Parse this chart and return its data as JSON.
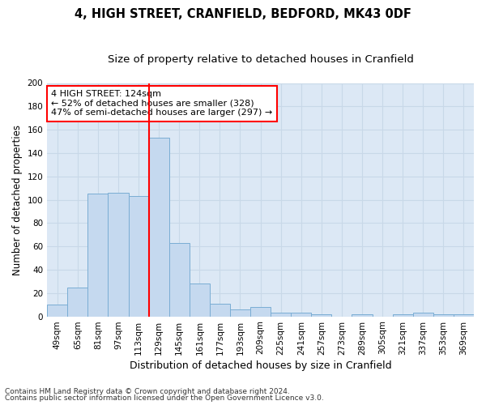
{
  "title1": "4, HIGH STREET, CRANFIELD, BEDFORD, MK43 0DF",
  "title2": "Size of property relative to detached houses in Cranfield",
  "xlabel": "Distribution of detached houses by size in Cranfield",
  "ylabel": "Number of detached properties",
  "categories": [
    "49sqm",
    "65sqm",
    "81sqm",
    "97sqm",
    "113sqm",
    "129sqm",
    "145sqm",
    "161sqm",
    "177sqm",
    "193sqm",
    "209sqm",
    "225sqm",
    "241sqm",
    "257sqm",
    "273sqm",
    "289sqm",
    "305sqm",
    "321sqm",
    "337sqm",
    "353sqm",
    "369sqm"
  ],
  "values": [
    10,
    25,
    105,
    106,
    103,
    153,
    63,
    28,
    11,
    6,
    8,
    3,
    3,
    2,
    0,
    2,
    0,
    2,
    3,
    2,
    2
  ],
  "bar_color": "#c5d9ef",
  "bar_edge_color": "#7aadd4",
  "vline_color": "red",
  "annotation_text": "4 HIGH STREET: 124sqm\n← 52% of detached houses are smaller (328)\n47% of semi-detached houses are larger (297) →",
  "annotation_box_color": "white",
  "annotation_box_edge_color": "red",
  "footnote1": "Contains HM Land Registry data © Crown copyright and database right 2024.",
  "footnote2": "Contains public sector information licensed under the Open Government Licence v3.0.",
  "ylim": [
    0,
    200
  ],
  "grid_color": "#c8d8e8",
  "bg_color": "#dce8f5",
  "title1_fontsize": 10.5,
  "title2_fontsize": 9.5,
  "xlabel_fontsize": 9,
  "ylabel_fontsize": 8.5,
  "tick_fontsize": 7.5,
  "annot_fontsize": 8,
  "footnote_fontsize": 6.5
}
